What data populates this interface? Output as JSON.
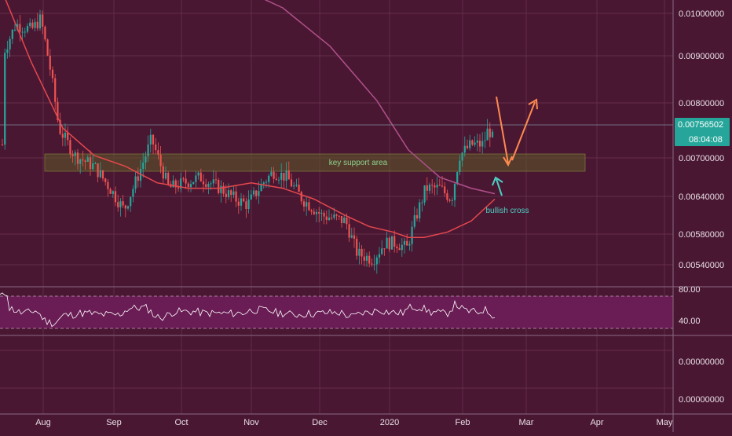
{
  "colors": {
    "background": "#4a1733",
    "grid": "#6a3450",
    "up": "#26a69a",
    "down": "#ef5350",
    "ma_fast": "#e5484d",
    "ma_slow": "#b0508a",
    "rsi_band": "#6a1d55",
    "support_zone": "#5a5a2a",
    "price_label_bg": "#26a69a",
    "arrow_orange": "#ff8a50",
    "arrow_teal": "#4dd0c4",
    "text": "#e8e0e6"
  },
  "price_axis": {
    "ticks": [
      "0.01000000",
      "0.00900000",
      "0.00800000",
      "0.00700000",
      "0.00640000",
      "0.00580000",
      "0.00540000"
    ],
    "current_price": "0.00756502",
    "countdown": "08:04:08"
  },
  "rsi_axis": {
    "ticks": [
      "80.00",
      "40.00"
    ]
  },
  "lower_axis": {
    "ticks": [
      "0.00000000",
      "0.00000000"
    ]
  },
  "time_axis": {
    "ticks": [
      "Aug",
      "Sep",
      "Oct",
      "Nov",
      "Dec",
      "2020",
      "Feb",
      "Mar",
      "Apr",
      "May"
    ]
  },
  "annotations": {
    "support_label": "key support area",
    "cross_label": "bullish cross"
  },
  "chart_data": {
    "type": "candlestick",
    "title": "",
    "x_range": [
      "2019-07-22",
      "2020-05-10"
    ],
    "y_range": [
      0.0051,
      0.0103
    ],
    "ma_fast": [
      [
        0,
        0.0105
      ],
      [
        40,
        0.0091
      ],
      [
        80,
        0.0079
      ],
      [
        120,
        0.0074
      ],
      [
        160,
        0.0072
      ],
      [
        200,
        0.0069
      ],
      [
        240,
        0.0068
      ],
      [
        280,
        0.0068
      ],
      [
        320,
        0.0069
      ],
      [
        360,
        0.0068
      ],
      [
        400,
        0.0066
      ],
      [
        440,
        0.0063
      ],
      [
        470,
        0.0061
      ],
      [
        500,
        0.006
      ],
      [
        520,
        0.0059
      ],
      [
        540,
        0.0059
      ],
      [
        570,
        0.006
      ],
      [
        600,
        0.0062
      ],
      [
        630,
        0.0066
      ]
    ],
    "ma_slow": [
      [
        300,
        0.0105
      ],
      [
        360,
        0.0101
      ],
      [
        420,
        0.0094
      ],
      [
        480,
        0.0084
      ],
      [
        520,
        0.0075
      ],
      [
        560,
        0.007
      ],
      [
        600,
        0.0068
      ],
      [
        630,
        0.0067
      ]
    ],
    "rsi": {
      "ylim": [
        20,
        90
      ],
      "bands": [
        30,
        70
      ]
    },
    "support_zone": [
      0.00683,
      0.00708
    ]
  }
}
